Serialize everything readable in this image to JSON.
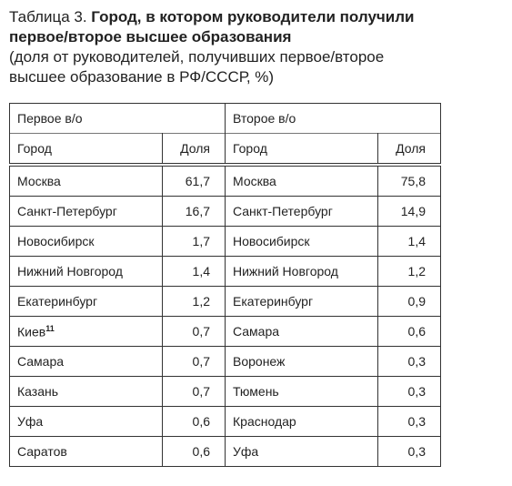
{
  "title": {
    "label": "Таблица 3.",
    "bold": "Город, в котором руководители получили первое/второе высшее образования",
    "subtitle": "(доля от руководителей, получивших первое/второе высшее образование в РФ/СССР, %)"
  },
  "table": {
    "groups": [
      "Первое в/о",
      "Второе в/о"
    ],
    "columns": [
      "Город",
      "Доля",
      "Город",
      "Доля"
    ],
    "rows": [
      [
        "Москва",
        "61,7",
        "Москва",
        "75,8"
      ],
      [
        "Санкт-Петербург",
        "16,7",
        "Санкт-Петербург",
        "14,9"
      ],
      [
        "Новосибирск",
        "1,7",
        "Новосибирск",
        "1,4"
      ],
      [
        "Нижний Новгород",
        "1,4",
        "Нижний Новгород",
        "1,2"
      ],
      [
        "Екатеринбург",
        "1,2",
        "Екатеринбург",
        "0,9"
      ],
      [
        {
          "text": "Киев",
          "sup": "11"
        },
        "0,7",
        "Самара",
        "0,6"
      ],
      [
        "Самара",
        "0,7",
        "Воронеж",
        "0,3"
      ],
      [
        "Казань",
        "0,7",
        "Тюмень",
        "0,3"
      ],
      [
        "Уфа",
        "0,6",
        "Краснодар",
        "0,3"
      ],
      [
        "Саратов",
        "0,6",
        "Уфа",
        "0,3"
      ]
    ]
  }
}
